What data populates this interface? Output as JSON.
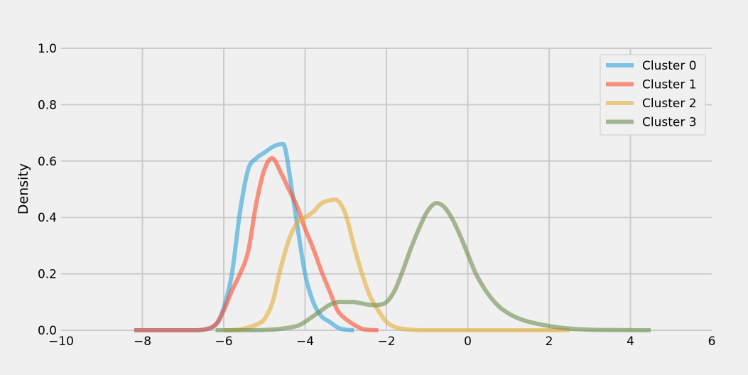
{
  "colors": {
    "background": "#f0f0f0",
    "grid": "#cbcbcb",
    "series": [
      "#30a2da",
      "#fc4f30",
      "#e5ae38",
      "#6d904f"
    ]
  },
  "chart_data": {
    "type": "line",
    "title": "",
    "xlabel": "",
    "ylabel": "Density",
    "xlim": [
      -10,
      6
    ],
    "ylim": [
      0,
      1.0
    ],
    "xticks": [
      -10,
      -8,
      -6,
      -4,
      -2,
      0,
      2,
      4,
      6
    ],
    "xtick_labels": [
      "−10",
      "−8",
      "−6",
      "−4",
      "−2",
      "0",
      "2",
      "4",
      "6"
    ],
    "yticks": [
      0,
      0.2,
      0.4,
      0.6,
      0.8,
      1.0
    ],
    "ytick_labels": [
      "0.0",
      "0.2",
      "0.4",
      "0.6",
      "0.8",
      "1.0"
    ],
    "grid": true,
    "legend": "top-right",
    "series": [
      {
        "name": "Cluster 0",
        "x": [
          -8.2,
          -7.0,
          -6.5,
          -6.2,
          -6.0,
          -5.8,
          -5.6,
          -5.4,
          -5.2,
          -5.0,
          -4.8,
          -4.6,
          -4.5,
          -4.4,
          -4.2,
          -4.0,
          -3.8,
          -3.6,
          -3.4,
          -3.2,
          -3.0,
          -2.8
        ],
        "y": [
          0.0,
          0.0,
          0.002,
          0.02,
          0.08,
          0.2,
          0.42,
          0.57,
          0.61,
          0.63,
          0.65,
          0.66,
          0.65,
          0.57,
          0.38,
          0.2,
          0.1,
          0.05,
          0.03,
          0.01,
          0.002,
          0.0
        ]
      },
      {
        "name": "Cluster 1",
        "x": [
          -8.2,
          -7.0,
          -6.5,
          -6.2,
          -6.0,
          -5.8,
          -5.6,
          -5.4,
          -5.2,
          -5.0,
          -4.8,
          -4.6,
          -4.4,
          -4.2,
          -4.0,
          -3.8,
          -3.6,
          -3.4,
          -3.2,
          -3.0,
          -2.8,
          -2.6,
          -2.4,
          -2.2
        ],
        "y": [
          0.0,
          0.0,
          0.002,
          0.02,
          0.07,
          0.14,
          0.2,
          0.28,
          0.45,
          0.57,
          0.61,
          0.56,
          0.5,
          0.44,
          0.36,
          0.29,
          0.21,
          0.14,
          0.07,
          0.04,
          0.02,
          0.005,
          0.001,
          0.0
        ]
      },
      {
        "name": "Cluster 2",
        "x": [
          -6.0,
          -5.6,
          -5.2,
          -5.0,
          -4.8,
          -4.6,
          -4.4,
          -4.2,
          -4.0,
          -3.8,
          -3.6,
          -3.4,
          -3.2,
          -3.0,
          -2.8,
          -2.6,
          -2.4,
          -2.2,
          -2.0,
          -1.8,
          -1.6,
          -1.4,
          -1.0,
          0.0,
          1.0,
          2.0,
          2.5
        ],
        "y": [
          0.0,
          0.003,
          0.02,
          0.04,
          0.1,
          0.22,
          0.32,
          0.38,
          0.4,
          0.42,
          0.45,
          0.46,
          0.46,
          0.41,
          0.3,
          0.2,
          0.12,
          0.07,
          0.03,
          0.012,
          0.005,
          0.002,
          0.0,
          0.0,
          0.0,
          0.0,
          0.0
        ]
      },
      {
        "name": "Cluster 3",
        "x": [
          -6.2,
          -5.5,
          -5.0,
          -4.6,
          -4.2,
          -4.0,
          -3.8,
          -3.6,
          -3.4,
          -3.2,
          -3.0,
          -2.8,
          -2.6,
          -2.4,
          -2.2,
          -2.0,
          -1.8,
          -1.6,
          -1.4,
          -1.2,
          -1.0,
          -0.8,
          -0.6,
          -0.4,
          -0.2,
          0.0,
          0.2,
          0.4,
          0.6,
          0.8,
          1.0,
          1.2,
          1.5,
          2.0,
          2.5,
          3.0,
          3.5,
          4.0,
          4.5
        ],
        "y": [
          0.0,
          0.0,
          0.001,
          0.005,
          0.015,
          0.03,
          0.05,
          0.07,
          0.09,
          0.1,
          0.1,
          0.1,
          0.095,
          0.09,
          0.09,
          0.1,
          0.14,
          0.21,
          0.29,
          0.36,
          0.42,
          0.45,
          0.44,
          0.4,
          0.34,
          0.27,
          0.2,
          0.15,
          0.11,
          0.08,
          0.06,
          0.045,
          0.03,
          0.015,
          0.006,
          0.002,
          0.0008,
          0.0002,
          0.0
        ]
      }
    ]
  }
}
